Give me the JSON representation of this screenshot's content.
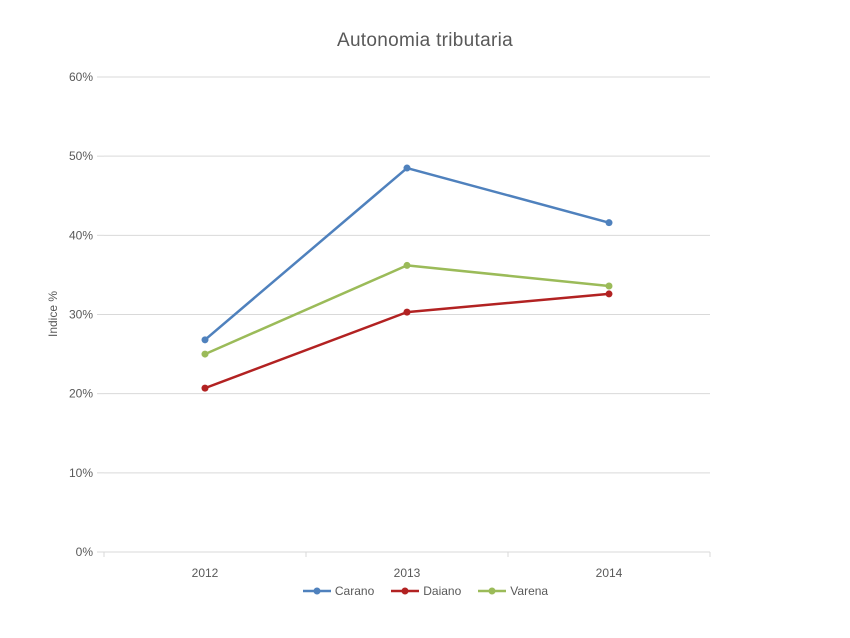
{
  "chart_data": {
    "type": "line",
    "title": "Autonomia tributaria",
    "xlabel": "",
    "ylabel": "Indice %",
    "categories": [
      "2012",
      "2013",
      "2014"
    ],
    "series": [
      {
        "name": "Carano",
        "color": "#4F81BD",
        "values": [
          26.8,
          48.5,
          41.6
        ]
      },
      {
        "name": "Daiano",
        "color": "#B22222",
        "values": [
          20.7,
          30.3,
          32.6
        ]
      },
      {
        "name": "Varena",
        "color": "#9BBB59",
        "values": [
          25.0,
          36.2,
          33.6
        ]
      }
    ],
    "ylim": [
      0,
      60
    ],
    "ytick_step": 10,
    "ytick_labels": [
      "0%",
      "10%",
      "20%",
      "30%",
      "40%",
      "50%",
      "60%"
    ],
    "grid": "horizontal",
    "gridline_color": "#D9D9D9",
    "text_color": "#595959",
    "background_color": "#FFFFFF",
    "legend_position": "bottom",
    "marker": "circle"
  }
}
